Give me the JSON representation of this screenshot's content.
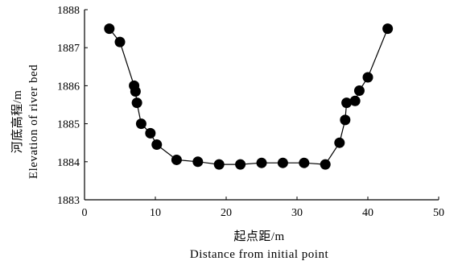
{
  "chart_data": {
    "type": "line",
    "xlabel_cn": "起点距/m",
    "xlabel_en": "Distance from initial point",
    "ylabel_cn": "河底高程/m",
    "ylabel_en": "Elevation of river bed",
    "xlim": [
      0,
      50
    ],
    "ylim": [
      1883,
      1888
    ],
    "xticks": [
      "0",
      "10",
      "20",
      "30",
      "40",
      "50"
    ],
    "yticks": [
      "1883",
      "1884",
      "1885",
      "1886",
      "1887",
      "1888"
    ],
    "grid": false,
    "marker": "filled-circle",
    "color": "#000000",
    "series": [
      {
        "x": [
          3.5,
          5.0,
          7.0,
          7.2,
          7.4,
          8.0,
          9.3,
          10.2,
          13.0,
          16.0,
          19.0,
          22.0,
          25.0,
          28.0,
          31.0,
          34.0,
          36.0,
          36.8,
          37.0,
          38.2,
          38.8,
          40.0,
          42.8
        ],
        "y": [
          1887.5,
          1887.15,
          1886.0,
          1885.85,
          1885.55,
          1885.0,
          1884.75,
          1884.45,
          1884.05,
          1884.0,
          1883.93,
          1883.93,
          1883.97,
          1883.97,
          1883.97,
          1883.93,
          1884.5,
          1885.1,
          1885.55,
          1885.6,
          1885.87,
          1886.22,
          1887.5
        ]
      }
    ]
  }
}
